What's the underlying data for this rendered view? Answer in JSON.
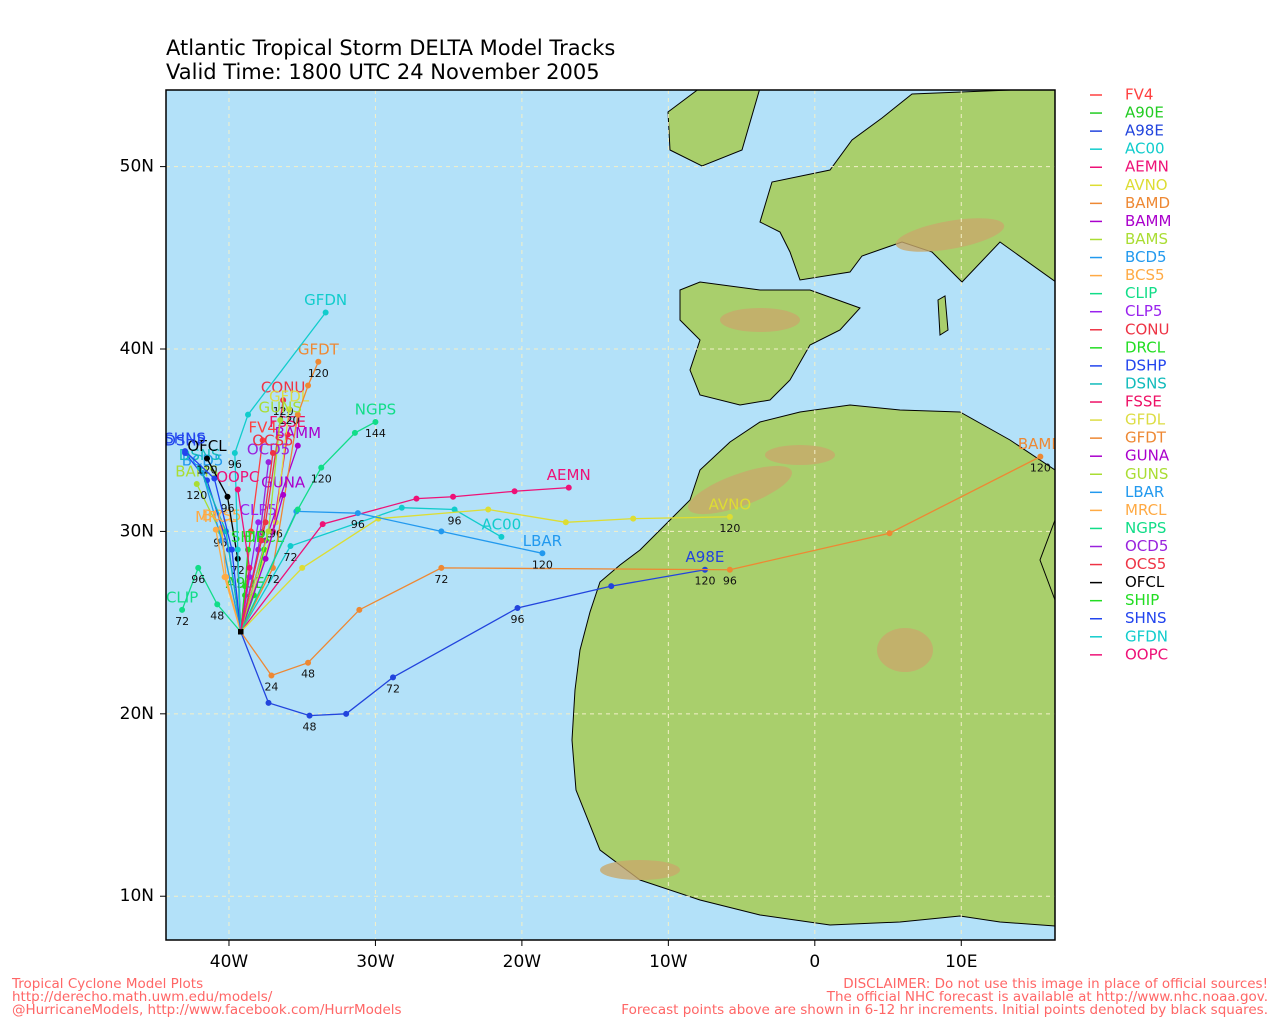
{
  "chart_data": {
    "type": "track-map",
    "title": "Atlantic Tropical Storm DELTA Model Tracks",
    "subtitle": "Valid Time: 1800 UTC 24 November 2005",
    "xlim": [
      -44.3,
      16.4
    ],
    "ylim": [
      7.6,
      54.2
    ],
    "xticks": [
      {
        "value": -40,
        "label": "40W"
      },
      {
        "value": -30,
        "label": "30W"
      },
      {
        "value": -20,
        "label": "20W"
      },
      {
        "value": -10,
        "label": "10W"
      },
      0,
      {
        "value": 10,
        "label": "10E"
      }
    ],
    "yticks": [
      {
        "value": 10,
        "label": "10N"
      },
      {
        "value": 20,
        "label": "20N"
      },
      {
        "value": 30,
        "label": "30N"
      },
      {
        "value": 40,
        "label": "40N"
      },
      {
        "value": 50,
        "label": "50N"
      }
    ],
    "grid": true,
    "series": [
      {
        "name": "FV4",
        "color": "#ff4040",
        "x": [
          -39.2,
          -38.5,
          -37.7
        ],
        "values": [
          24.5,
          30.0,
          35.0
        ]
      },
      {
        "name": "A90E",
        "color": "#22cc22",
        "x": [
          -39.2,
          -38.9
        ],
        "values": [
          24.5,
          26.5
        ]
      },
      {
        "name": "A98E",
        "color": "#2244dd",
        "x": [
          -39.2,
          -37.3,
          -34.5,
          -32.0,
          -28.8,
          -20.3,
          -13.9,
          -7.5
        ],
        "values": [
          24.5,
          20.6,
          19.9,
          20.0,
          22.0,
          25.8,
          27.0,
          27.9
        ],
        "hours": [
          null,
          null,
          48,
          null,
          72,
          96,
          null,
          120
        ]
      },
      {
        "name": "AC00",
        "color": "#11cccc",
        "x": [
          -39.2,
          -35.8,
          -28.2,
          -24.6,
          -21.4
        ],
        "values": [
          24.5,
          29.2,
          31.3,
          31.2,
          29.7
        ],
        "hours": [
          null,
          72,
          null,
          96,
          null
        ]
      },
      {
        "name": "AEMN",
        "color": "#ee1177",
        "x": [
          -39.2,
          -33.6,
          -27.2,
          -24.7,
          -20.5,
          -16.8
        ],
        "values": [
          24.5,
          30.4,
          31.8,
          31.9,
          32.2,
          32.4
        ]
      },
      {
        "name": "AVNO",
        "color": "#dddd33",
        "x": [
          -39.2,
          -35.0,
          -29.8,
          -22.3,
          -17.0,
          -12.4,
          -5.8
        ],
        "values": [
          24.5,
          28.0,
          30.7,
          31.2,
          30.5,
          30.7,
          30.8
        ],
        "hours": [
          null,
          null,
          null,
          null,
          null,
          null,
          120
        ]
      },
      {
        "name": "BAMD",
        "color": "#ee8833",
        "x": [
          -39.2,
          -37.1,
          -34.6,
          -31.1,
          -25.5,
          -5.8,
          5.1,
          15.4
        ],
        "values": [
          24.5,
          22.1,
          22.8,
          25.7,
          28.0,
          27.9,
          29.9,
          34.1
        ],
        "hours": [
          null,
          24,
          48,
          null,
          72,
          96,
          null,
          120
        ]
      },
      {
        "name": "BAMM",
        "color": "#aa00cc",
        "x": [
          -39.2,
          -37.5,
          -35.3
        ],
        "values": [
          24.5,
          29.5,
          34.7
        ]
      },
      {
        "name": "BAMS",
        "color": "#aadd33",
        "x": [
          -39.2,
          -40.6,
          -42.2
        ],
        "values": [
          24.5,
          30.0,
          32.6
        ],
        "hours": [
          null,
          96,
          120
        ]
      },
      {
        "name": "BCD5",
        "color": "#2299ee",
        "x": [
          -39.2,
          -40.5,
          -41.8
        ],
        "values": [
          24.5,
          29.5,
          33.2
        ]
      },
      {
        "name": "BCS5",
        "color": "#ffaa44",
        "x": [
          -39.2,
          -40.2,
          -40.5
        ],
        "values": [
          24.5,
          27.5,
          30.2
        ]
      },
      {
        "name": "CLIP",
        "color": "#11dd88",
        "x": [
          -39.2,
          -40.8,
          -42.1,
          -43.2
        ],
        "values": [
          24.5,
          26.0,
          28.0,
          25.7
        ],
        "hours": [
          null,
          48,
          96,
          72
        ]
      },
      {
        "name": "CLP5",
        "color": "#9922ee",
        "x": [
          -39.2,
          -38.6,
          -38.0
        ],
        "values": [
          24.5,
          27.5,
          30.5
        ]
      },
      {
        "name": "CONU",
        "color": "#ee3344",
        "x": [
          -39.2,
          -37.5,
          -36.3
        ],
        "values": [
          24.5,
          30.5,
          37.2
        ],
        "hours": [
          null,
          96,
          120
        ]
      },
      {
        "name": "DRCL",
        "color": "#22dd22",
        "x": [
          -39.2,
          -38.3,
          -37.6
        ],
        "values": [
          24.5,
          26.5,
          29.0
        ]
      },
      {
        "name": "DSHP",
        "color": "#2244ee",
        "x": [
          -39.2,
          -40.0,
          -41.5,
          -43.0
        ],
        "values": [
          24.5,
          29.0,
          32.8,
          34.3
        ]
      },
      {
        "name": "DSNS",
        "color": "#11bbbb",
        "x": [
          -39.2,
          -40.2,
          -42.0
        ],
        "values": [
          24.5,
          30.0,
          33.5
        ]
      },
      {
        "name": "FSSE",
        "color": "#ee1166",
        "x": [
          -39.2,
          -37.0,
          -36.0
        ],
        "values": [
          24.5,
          30.0,
          35.3
        ]
      },
      {
        "name": "GFDL",
        "color": "#dddd44",
        "x": [
          -39.2,
          -36.8,
          -35.9
        ],
        "values": [
          24.5,
          30.5,
          36.7
        ],
        "hours": [
          null,
          96,
          120
        ]
      },
      {
        "name": "GFDT",
        "color": "#ee8833",
        "x": [
          -39.2,
          -37.0,
          -35.3,
          -34.6,
          -33.9
        ],
        "values": [
          24.5,
          28.0,
          36.4,
          38.0,
          39.3
        ],
        "hours": [
          null,
          72,
          null,
          null,
          120
        ]
      },
      {
        "name": "GUNA",
        "color": "#aa00cc",
        "x": [
          -39.2,
          -37.5,
          -36.3
        ],
        "values": [
          24.5,
          28.5,
          32.0
        ]
      },
      {
        "name": "GUNS",
        "color": "#aadd33",
        "x": [
          -39.2,
          -37.3,
          -36.5
        ],
        "values": [
          24.5,
          30.0,
          36.1
        ]
      },
      {
        "name": "LBAR",
        "color": "#2299ee",
        "x": [
          -39.2,
          -35.4,
          -31.2,
          -25.5,
          -18.6
        ],
        "values": [
          24.5,
          31.1,
          31.0,
          30.0,
          28.8
        ],
        "hours": [
          null,
          null,
          96,
          null,
          120
        ]
      },
      {
        "name": "MRCL",
        "color": "#ffaa44",
        "x": [
          -39.2,
          -40.3,
          -40.9
        ],
        "values": [
          24.5,
          27.5,
          30.1
        ]
      },
      {
        "name": "NGPS",
        "color": "#11dd88",
        "x": [
          -39.2,
          -35.3,
          -33.7,
          -31.4,
          -30.0
        ],
        "values": [
          24.5,
          31.2,
          33.5,
          35.4,
          36.0
        ],
        "hours": [
          null,
          null,
          120,
          null,
          144
        ]
      },
      {
        "name": "OCD5",
        "color": "#9922dd",
        "x": [
          -39.2,
          -38.0,
          -37.3
        ],
        "values": [
          24.5,
          29.0,
          33.8
        ]
      },
      {
        "name": "OCS5",
        "color": "#ee3344",
        "x": [
          -39.2,
          -37.8,
          -37.0
        ],
        "values": [
          24.5,
          29.5,
          34.3
        ]
      },
      {
        "name": "OFCL",
        "color": "#000000",
        "x": [
          -39.2,
          -39.4,
          -40.1,
          -41.5
        ],
        "values": [
          24.5,
          28.5,
          31.9,
          34.0
        ],
        "hours": [
          null,
          72,
          96,
          120
        ]
      },
      {
        "name": "SHIP",
        "color": "#22dd22",
        "x": [
          -39.2,
          -38.9,
          -38.7
        ],
        "values": [
          24.5,
          27.0,
          29.0
        ]
      },
      {
        "name": "SHNS",
        "color": "#2244ee",
        "x": [
          -39.2,
          -39.8,
          -41.0,
          -43.0
        ],
        "values": [
          24.5,
          29.0,
          32.9,
          34.4
        ]
      },
      {
        "name": "GFDN",
        "color": "#11cccc",
        "x": [
          -39.2,
          -39.4,
          -39.6,
          -38.7,
          -33.4
        ],
        "values": [
          24.5,
          29.0,
          34.3,
          36.4,
          42.0
        ],
        "hours": [
          null,
          null,
          96,
          null,
          null
        ]
      },
      {
        "name": "OOPC",
        "color": "#ee1177",
        "x": [
          -39.2,
          -38.6,
          -39.4
        ],
        "values": [
          24.5,
          28.0,
          32.3
        ]
      }
    ]
  },
  "footer": {
    "left": [
      "Tropical Cyclone Model Plots",
      "http://derecho.math.uwm.edu/models/",
      "@HurricaneModels, http://www.facebook.com/HurrModels"
    ],
    "right": [
      "DISCLAIMER: Do not use this image in place of official sources!",
      "The official NHC forecast is available at http://www.nhc.noaa.gov.",
      "Forecast points above are shown in 6-12 hr increments. Initial points denoted by black squares."
    ]
  }
}
